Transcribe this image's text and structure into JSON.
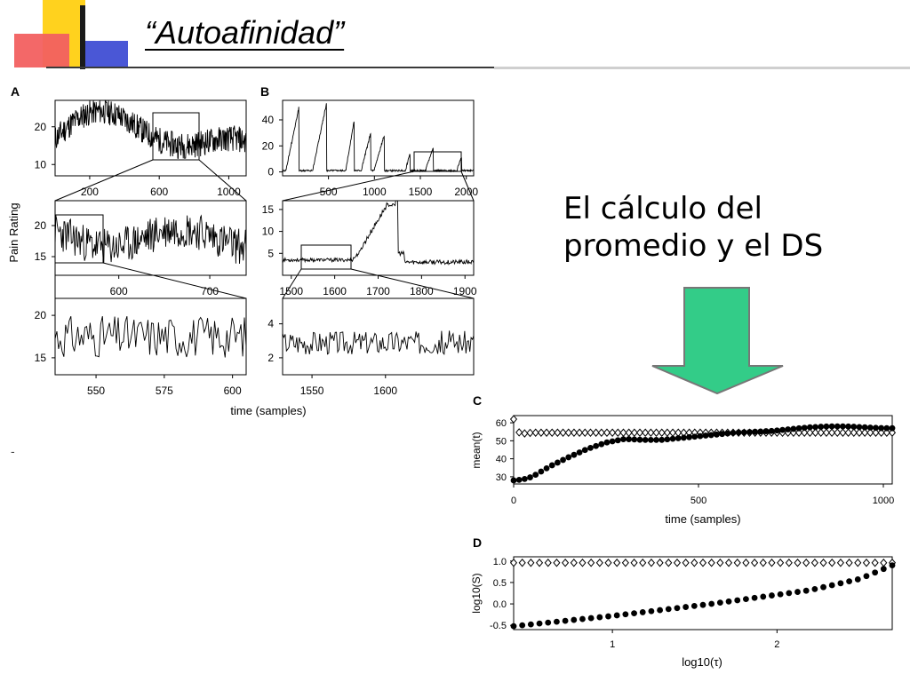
{
  "slide": {
    "title": "“Autoafinidad”",
    "body_line1": "El cálculo del",
    "body_line2": "promedio y el DS",
    "footnote": "-",
    "colors": {
      "arrow": "#33cc88",
      "arrow_outline": "#777777",
      "deco_yellow": "#ffd21e",
      "deco_red": "#f26060",
      "deco_blue": "#4a57d6"
    },
    "icons": {
      "arrow": "arrow-down-icon"
    }
  },
  "chart_data": [
    {
      "panel": "A",
      "type": "line",
      "ylabel": "Pain Rating",
      "xlabel": "time (samples)",
      "rows": [
        {
          "xlim": [
            1,
            1100
          ],
          "ylim": [
            7,
            27
          ],
          "xticks": [
            200,
            600,
            1000
          ],
          "yticks": [
            10,
            20
          ]
        },
        {
          "xlim": [
            530,
            740
          ],
          "ylim": [
            12,
            24
          ],
          "xticks": [
            600,
            700
          ],
          "yticks": [
            15,
            20
          ]
        },
        {
          "xlim": [
            535,
            605
          ],
          "ylim": [
            13,
            22
          ],
          "xticks": [
            550,
            575,
            600
          ],
          "yticks": [
            15,
            20
          ]
        }
      ]
    },
    {
      "panel": "B",
      "type": "line",
      "rows": [
        {
          "xlim": [
            1,
            2080
          ],
          "ylim": [
            -3,
            55
          ],
          "xticks": [
            500,
            1000,
            1500,
            2000
          ],
          "yticks": [
            0,
            20,
            40
          ]
        },
        {
          "xlim": [
            1480,
            1920
          ],
          "ylim": [
            0,
            17
          ],
          "xticks": [
            1500,
            1600,
            1700,
            1800,
            1900
          ],
          "yticks": [
            5,
            10,
            15
          ]
        },
        {
          "xlim": [
            1530,
            1660
          ],
          "ylim": [
            1,
            5.5
          ],
          "xticks": [
            1550,
            1600
          ],
          "yticks": [
            2,
            4
          ]
        }
      ]
    },
    {
      "panel": "C",
      "type": "scatter",
      "xlabel": "time (samples)",
      "ylabel": "mean(t)",
      "xlim": [
        0,
        1024
      ],
      "ylim": [
        26,
        64
      ],
      "xticks": [
        0,
        500,
        1000
      ],
      "yticks": [
        30,
        40,
        50,
        60
      ],
      "series": [
        {
          "marker": "filled-circle",
          "x": [
            0,
            25,
            50,
            75,
            100,
            150,
            200,
            250,
            300,
            350,
            400,
            450,
            500,
            550,
            600,
            650,
            700,
            750,
            800,
            850,
            900,
            950,
            1000,
            1024
          ],
          "y": [
            28,
            28.5,
            30,
            33,
            36,
            41,
            45.5,
            49,
            51,
            50.5,
            50.5,
            51.5,
            52.5,
            53.5,
            54.5,
            55,
            55.5,
            56.5,
            57.5,
            58,
            58,
            57.5,
            57,
            57
          ]
        },
        {
          "marker": "open-diamond",
          "x": [
            0,
            5,
            10,
            25,
            50,
            100,
            200,
            300,
            400,
            500,
            600,
            700,
            800,
            900,
            1000,
            1024
          ],
          "y": [
            62,
            49,
            55,
            54,
            54.5,
            54.5,
            54.5,
            54.5,
            54.5,
            54.5,
            54.5,
            54.5,
            54.5,
            54.5,
            54.5,
            54.5
          ]
        }
      ]
    },
    {
      "panel": "D",
      "type": "scatter",
      "xlabel": "log10(τ)",
      "ylabel": "log10(S)",
      "xlim": [
        0.4,
        2.7
      ],
      "ylim": [
        -0.6,
        1.1
      ],
      "xticks": [
        1,
        2
      ],
      "yticks": [
        1.0,
        0.5,
        0.0,
        -0.5
      ],
      "series": [
        {
          "marker": "filled-circle",
          "x": [
            0.4,
            0.7,
            1.0,
            1.3,
            1.6,
            1.9,
            2.2,
            2.5,
            2.7
          ],
          "y": [
            -0.52,
            -0.4,
            -0.28,
            -0.14,
            0.0,
            0.16,
            0.32,
            0.58,
            0.9
          ]
        },
        {
          "marker": "open-diamond",
          "x": [
            0.4,
            2.7
          ],
          "y": [
            0.96,
            0.96
          ]
        }
      ]
    }
  ]
}
